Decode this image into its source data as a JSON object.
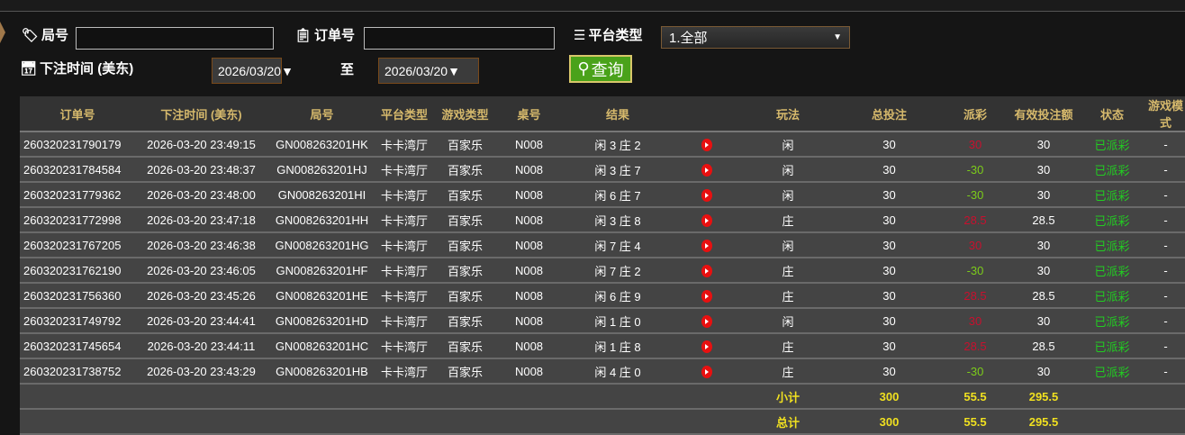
{
  "filters": {
    "round_label": "局号",
    "round_value": "",
    "order_label": "订单号",
    "order_value": "",
    "platform_label": "平台类型",
    "platform_value": "1.全部",
    "time_label": "下注时间 (美东)",
    "date_from": "2026/03/20▼",
    "to_label": "至",
    "date_to": "2026/03/20▼",
    "query_label": "查询"
  },
  "table": {
    "headers": [
      "订单号",
      "下注时间 (美东)",
      "局号",
      "平台类型",
      "游戏类型",
      "桌号",
      "结果",
      "",
      "玩法",
      "总投注",
      "派彩",
      "有效投注额",
      "状态",
      "游戏模式"
    ],
    "rows": [
      {
        "order": "260320231790179",
        "time": "2026-03-20 23:49:15",
        "round": "GN008263201HK",
        "platform": "卡卡湾厅",
        "game": "百家乐",
        "table": "N008",
        "result": "闲 3 庄 2",
        "play": "闲",
        "bet": "30",
        "payout": "30",
        "payout_color": "red",
        "valid": "30",
        "status": "已派彩",
        "mode": "-"
      },
      {
        "order": "260320231784584",
        "time": "2026-03-20 23:48:37",
        "round": "GN008263201HJ",
        "platform": "卡卡湾厅",
        "game": "百家乐",
        "table": "N008",
        "result": "闲 3 庄 7",
        "play": "闲",
        "bet": "30",
        "payout": "-30",
        "payout_color": "green",
        "valid": "30",
        "status": "已派彩",
        "mode": "-"
      },
      {
        "order": "260320231779362",
        "time": "2026-03-20 23:48:00",
        "round": "GN008263201HI",
        "platform": "卡卡湾厅",
        "game": "百家乐",
        "table": "N008",
        "result": "闲 6 庄 7",
        "play": "闲",
        "bet": "30",
        "payout": "-30",
        "payout_color": "green",
        "valid": "30",
        "status": "已派彩",
        "mode": "-"
      },
      {
        "order": "260320231772998",
        "time": "2026-03-20 23:47:18",
        "round": "GN008263201HH",
        "platform": "卡卡湾厅",
        "game": "百家乐",
        "table": "N008",
        "result": "闲 3 庄 8",
        "play": "庄",
        "bet": "30",
        "payout": "28.5",
        "payout_color": "red",
        "valid": "28.5",
        "status": "已派彩",
        "mode": "-"
      },
      {
        "order": "260320231767205",
        "time": "2026-03-20 23:46:38",
        "round": "GN008263201HG",
        "platform": "卡卡湾厅",
        "game": "百家乐",
        "table": "N008",
        "result": "闲 7 庄 4",
        "play": "闲",
        "bet": "30",
        "payout": "30",
        "payout_color": "red",
        "valid": "30",
        "status": "已派彩",
        "mode": "-"
      },
      {
        "order": "260320231762190",
        "time": "2026-03-20 23:46:05",
        "round": "GN008263201HF",
        "platform": "卡卡湾厅",
        "game": "百家乐",
        "table": "N008",
        "result": "闲 7 庄 2",
        "play": "庄",
        "bet": "30",
        "payout": "-30",
        "payout_color": "green",
        "valid": "30",
        "status": "已派彩",
        "mode": "-"
      },
      {
        "order": "260320231756360",
        "time": "2026-03-20 23:45:26",
        "round": "GN008263201HE",
        "platform": "卡卡湾厅",
        "game": "百家乐",
        "table": "N008",
        "result": "闲 6 庄 9",
        "play": "庄",
        "bet": "30",
        "payout": "28.5",
        "payout_color": "red",
        "valid": "28.5",
        "status": "已派彩",
        "mode": "-"
      },
      {
        "order": "260320231749792",
        "time": "2026-03-20 23:44:41",
        "round": "GN008263201HD",
        "platform": "卡卡湾厅",
        "game": "百家乐",
        "table": "N008",
        "result": "闲 1 庄 0",
        "play": "闲",
        "bet": "30",
        "payout": "30",
        "payout_color": "red",
        "valid": "30",
        "status": "已派彩",
        "mode": "-"
      },
      {
        "order": "260320231745654",
        "time": "2026-03-20 23:44:11",
        "round": "GN008263201HC",
        "platform": "卡卡湾厅",
        "game": "百家乐",
        "table": "N008",
        "result": "闲 1 庄 8",
        "play": "庄",
        "bet": "30",
        "payout": "28.5",
        "payout_color": "red",
        "valid": "28.5",
        "status": "已派彩",
        "mode": "-"
      },
      {
        "order": "260320231738752",
        "time": "2026-03-20 23:43:29",
        "round": "GN008263201HB",
        "platform": "卡卡湾厅",
        "game": "百家乐",
        "table": "N008",
        "result": "闲 4 庄 0",
        "play": "庄",
        "bet": "30",
        "payout": "-30",
        "payout_color": "green",
        "valid": "30",
        "status": "已派彩",
        "mode": "-"
      }
    ],
    "subtotal": {
      "label": "小计",
      "bet": "300",
      "payout": "55.5",
      "valid": "295.5"
    },
    "total": {
      "label": "总计",
      "bet": "300",
      "payout": "55.5",
      "valid": "295.5"
    }
  },
  "colors": {
    "header_text": "#d6b96c",
    "win": "#c8102e",
    "loss": "#7ccc1a",
    "status": "#22cc22",
    "totals": "#f0e020",
    "query": "#4aa21a"
  }
}
